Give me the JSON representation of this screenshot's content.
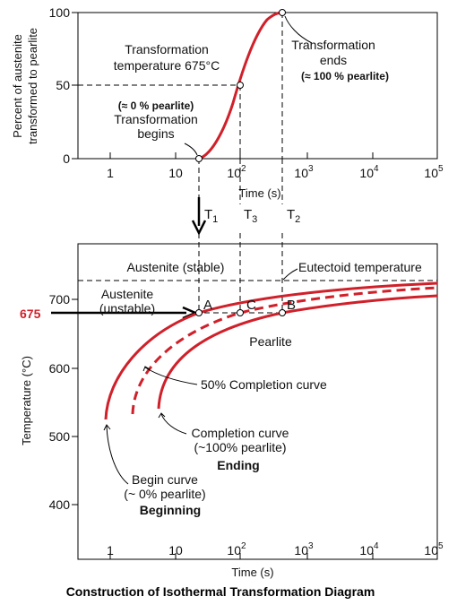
{
  "top_chart": {
    "ylabel_line1": "Percent of austenite",
    "ylabel_line2": "transformed to pearlite",
    "xlabel": "Time (s)",
    "yticks": [
      "0",
      "50",
      "100"
    ],
    "xticks": [
      "1",
      "10",
      "10",
      "10",
      "10",
      "10"
    ],
    "xtick_exponents": [
      "",
      "",
      "2",
      "3",
      "4",
      "5"
    ],
    "label_transformation_temp_1": "Transformation",
    "label_transformation_temp_2": "temperature 675°C",
    "label_begins_1": "(≈ 0 % pearlite)",
    "label_begins_2": "Transformation",
    "label_begins_3": "begins",
    "label_ends_1": "Transformation",
    "label_ends_2": "ends",
    "label_ends_3": "(≈ 100 % pearlite)"
  },
  "markers": {
    "t1": "T",
    "t1_sub": "1",
    "t3": "T",
    "t3_sub": "3",
    "t2": "T",
    "t2_sub": "2"
  },
  "bottom_chart": {
    "ylabel": "Temperature (°C)",
    "xlabel": "Time (s)",
    "yticks": [
      "400",
      "500",
      "600",
      "700"
    ],
    "temp_675": "675",
    "xticks": [
      "1",
      "10",
      "10",
      "10",
      "10",
      "10"
    ],
    "xtick_exponents": [
      "",
      "",
      "2",
      "3",
      "4",
      "5"
    ],
    "austenite_stable": "Austenite (stable)",
    "eutectoid": "Eutectoid temperature",
    "austenite_unstable_1": "Austenite",
    "austenite_unstable_2": "(unstable)",
    "point_a": "A",
    "point_b": "B",
    "point_c": "C",
    "pearlite": "Pearlite",
    "fifty_curve": "50% Completion curve",
    "completion_1": "Completion curve",
    "completion_2": "(~100% pearlite)",
    "ending": "Ending",
    "begin_1": "Begin curve",
    "begin_2": "(~ 0% pearlite)",
    "beginning": "Beginning"
  },
  "caption": "Construction of Isothermal Transformation Diagram",
  "colors": {
    "curve": "#d0202a",
    "axis": "#000000"
  }
}
